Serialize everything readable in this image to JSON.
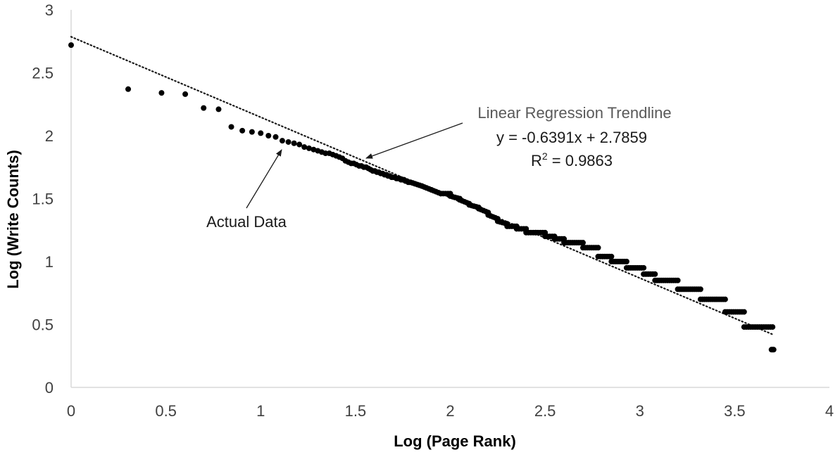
{
  "chart_data": {
    "type": "scatter",
    "title": "",
    "xlabel": "Log (Page Rank)",
    "ylabel": "Log (Write Counts)",
    "xlim": [
      0,
      4
    ],
    "ylim": [
      0,
      3
    ],
    "x_ticks": [
      "0",
      "0.5",
      "1",
      "1.5",
      "2",
      "2.5",
      "3",
      "3.5",
      "4"
    ],
    "y_ticks": [
      "0",
      "0.5",
      "1",
      "1.5",
      "2",
      "2.5",
      "3"
    ],
    "grid": false,
    "marker_color": "#000000",
    "series": [
      {
        "points": [
          [
            0.0,
            2.72
          ],
          [
            0.301,
            2.37
          ],
          [
            0.477,
            2.34
          ],
          [
            0.602,
            2.33
          ],
          [
            0.699,
            2.22
          ],
          [
            0.778,
            2.21
          ],
          [
            0.845,
            2.07
          ],
          [
            0.903,
            2.04
          ],
          [
            0.954,
            2.03
          ],
          [
            1.0,
            2.02
          ],
          [
            1.041,
            2.0
          ],
          [
            1.079,
            1.99
          ],
          [
            1.114,
            1.96
          ],
          [
            1.146,
            1.95
          ],
          [
            1.176,
            1.94
          ],
          [
            1.204,
            1.93
          ],
          [
            1.23,
            1.91
          ],
          [
            1.255,
            1.9
          ],
          [
            1.279,
            1.89
          ],
          [
            1.301,
            1.88
          ],
          [
            1.322,
            1.87
          ],
          [
            1.342,
            1.86
          ],
          [
            1.362,
            1.86
          ],
          [
            1.38,
            1.85
          ],
          [
            1.398,
            1.84
          ],
          [
            1.415,
            1.83
          ],
          [
            1.431,
            1.82
          ],
          [
            1.447,
            1.8
          ],
          [
            1.462,
            1.79
          ],
          [
            1.477,
            1.78
          ],
          [
            1.491,
            1.78
          ],
          [
            1.505,
            1.77
          ],
          [
            1.519,
            1.76
          ],
          [
            1.531,
            1.76
          ],
          [
            1.544,
            1.75
          ],
          [
            1.556,
            1.75
          ],
          [
            1.568,
            1.74
          ],
          [
            1.58,
            1.73
          ],
          [
            1.591,
            1.72
          ],
          [
            1.602,
            1.72
          ],
          [
            1.613,
            1.71
          ],
          [
            1.623,
            1.71
          ],
          [
            1.633,
            1.7
          ],
          [
            1.643,
            1.7
          ],
          [
            1.653,
            1.69
          ],
          [
            1.663,
            1.69
          ],
          [
            1.672,
            1.68
          ],
          [
            1.681,
            1.68
          ],
          [
            1.69,
            1.67
          ],
          [
            1.699,
            1.67
          ],
          [
            1.708,
            1.67
          ],
          [
            1.716,
            1.66
          ],
          [
            1.724,
            1.66
          ],
          [
            1.732,
            1.66
          ],
          [
            1.74,
            1.65
          ],
          [
            1.748,
            1.65
          ],
          [
            1.756,
            1.65
          ],
          [
            1.763,
            1.64
          ],
          [
            1.771,
            1.64
          ],
          [
            1.778,
            1.63
          ],
          [
            1.785,
            1.63
          ]
        ]
      }
    ],
    "dense_segments": [
      [
        1.79,
        1.85,
        1.63,
        1.6
      ],
      [
        1.85,
        1.9,
        1.6,
        1.57
      ],
      [
        1.9,
        1.95,
        1.57,
        1.54
      ],
      [
        1.95,
        2.0,
        1.54,
        1.54
      ],
      [
        2.0,
        2.05,
        1.52,
        1.5
      ],
      [
        2.05,
        2.1,
        1.49,
        1.46
      ],
      [
        2.1,
        2.15,
        1.45,
        1.43
      ],
      [
        2.15,
        2.2,
        1.42,
        1.39
      ],
      [
        2.2,
        2.25,
        1.37,
        1.34
      ],
      [
        2.25,
        2.3,
        1.32,
        1.3
      ],
      [
        2.3,
        2.35,
        1.28,
        1.28
      ],
      [
        2.35,
        2.4,
        1.26,
        1.26
      ],
      [
        2.4,
        2.45,
        1.23,
        1.23
      ],
      [
        2.45,
        2.5,
        1.23,
        1.23
      ],
      [
        2.5,
        2.55,
        1.2,
        1.2
      ],
      [
        2.55,
        2.6,
        1.18,
        1.18
      ],
      [
        2.6,
        2.7,
        1.15,
        1.15
      ],
      [
        2.7,
        2.78,
        1.11,
        1.11
      ],
      [
        2.78,
        2.85,
        1.04,
        1.04
      ],
      [
        2.85,
        2.93,
        1.0,
        1.0
      ],
      [
        2.93,
        3.02,
        0.95,
        0.95
      ],
      [
        3.02,
        3.08,
        0.9,
        0.9
      ],
      [
        3.08,
        3.2,
        0.85,
        0.85
      ],
      [
        3.2,
        3.32,
        0.78,
        0.78
      ],
      [
        3.32,
        3.45,
        0.7,
        0.7
      ],
      [
        3.45,
        3.55,
        0.6,
        0.6
      ],
      [
        3.55,
        3.7,
        0.48,
        0.48
      ]
    ],
    "outliers": [
      [
        3.7,
        0.3
      ]
    ],
    "trendline": {
      "slope": -0.6391,
      "intercept": 2.7859,
      "x_range": [
        0,
        3.7
      ],
      "style": "dotted"
    },
    "annotations": {
      "trend_title": "Linear Regression Trendline",
      "trend_equation": "y = -0.6391x + 2.7859",
      "r2_label": "R",
      "r2_sup": "2",
      "r2_value": " = 0.9863",
      "actual_data": "Actual Data"
    }
  }
}
